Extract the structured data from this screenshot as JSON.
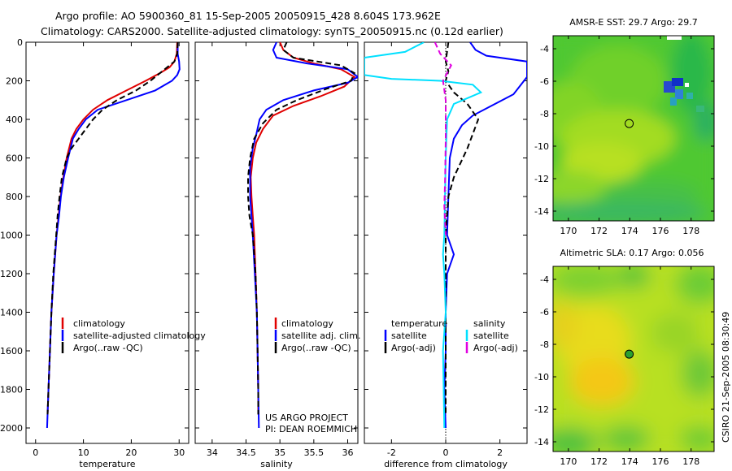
{
  "title_line1": "Argo profile: AO 5900360_81 15-Sep-2005 20050915_428 8.604S 173.962E",
  "title_line2": "Climatology: CARS2000. Satellite-adjusted climatology: synTS_20050915.nc (0.12d earlier)",
  "footer_right": "CSIRO 21-Sep-2005 08:30:49",
  "colors": {
    "red": "#e00000",
    "blue": "#0000ff",
    "black": "#000000",
    "cyan": "#00e0ff",
    "magenta": "#e000e0"
  },
  "chart_data": [
    {
      "id": "temperature",
      "type": "line",
      "xlabel": "temperature",
      "xlim": [
        -2,
        32
      ],
      "ylim": [
        2080,
        0
      ],
      "xticks": [
        0,
        10,
        20,
        30
      ],
      "yticks": [
        0,
        200,
        400,
        600,
        800,
        1000,
        1200,
        1400,
        1600,
        1800,
        2000
      ],
      "legend": {
        "position": "lower-right",
        "entries": [
          "climatology",
          "satellite-adjusted climatology",
          "Argo(..raw -QC)"
        ]
      },
      "series": [
        {
          "name": "climatology",
          "color": "red",
          "style": "solid",
          "points": [
            [
              29.6,
              0
            ],
            [
              29.5,
              60
            ],
            [
              29.0,
              100
            ],
            [
              28.0,
              130
            ],
            [
              26.0,
              160
            ],
            [
              23.0,
              200
            ],
            [
              19.0,
              250
            ],
            [
              15.0,
              300
            ],
            [
              12.0,
              350
            ],
            [
              10.0,
              400
            ],
            [
              8.5,
              450
            ],
            [
              7.5,
              500
            ],
            [
              6.5,
              600
            ],
            [
              5.8,
              700
            ],
            [
              5.2,
              800
            ],
            [
              4.8,
              900
            ],
            [
              4.4,
              1000
            ],
            [
              3.8,
              1200
            ],
            [
              3.3,
              1400
            ],
            [
              3.0,
              1600
            ],
            [
              2.7,
              1800
            ],
            [
              2.5,
              1930
            ]
          ]
        },
        {
          "name": "satellite-adjusted climatology",
          "color": "blue",
          "style": "solid",
          "points": [
            [
              29.7,
              0
            ],
            [
              29.7,
              60
            ],
            [
              30.0,
              100
            ],
            [
              30.1,
              140
            ],
            [
              29.6,
              170
            ],
            [
              28.5,
              200
            ],
            [
              25.0,
              250
            ],
            [
              19.0,
              300
            ],
            [
              13.0,
              350
            ],
            [
              10.5,
              400
            ],
            [
              9.0,
              450
            ],
            [
              7.8,
              500
            ],
            [
              6.8,
              600
            ],
            [
              5.9,
              700
            ],
            [
              5.3,
              800
            ],
            [
              4.9,
              900
            ],
            [
              4.4,
              1000
            ],
            [
              3.8,
              1200
            ],
            [
              3.3,
              1400
            ],
            [
              3.0,
              1600
            ],
            [
              2.7,
              1800
            ],
            [
              2.4,
              2000
            ]
          ]
        },
        {
          "name": "Argo(..raw -QC)",
          "color": "black",
          "style": "dashed",
          "points": [
            [
              29.7,
              0
            ],
            [
              29.6,
              60
            ],
            [
              29.0,
              100
            ],
            [
              27.5,
              130
            ],
            [
              26.0,
              160
            ],
            [
              24.0,
              200
            ],
            [
              21.0,
              250
            ],
            [
              17.0,
              300
            ],
            [
              14.0,
              350
            ],
            [
              12.0,
              400
            ],
            [
              10.5,
              450
            ],
            [
              9.0,
              500
            ],
            [
              7.5,
              550
            ],
            [
              6.5,
              600
            ],
            [
              5.5,
              700
            ],
            [
              5.0,
              800
            ],
            [
              4.6,
              900
            ],
            [
              4.3,
              1000
            ],
            [
              3.7,
              1200
            ],
            [
              3.3,
              1400
            ],
            [
              3.0,
              1600
            ],
            [
              2.7,
              1800
            ],
            [
              2.5,
              1930
            ]
          ]
        }
      ]
    },
    {
      "id": "salinity",
      "type": "line",
      "xlabel": "salinity",
      "xlim": [
        33.75,
        36.15
      ],
      "ylim": [
        2080,
        0
      ],
      "xticks": [
        34,
        34.5,
        35,
        35.5,
        36
      ],
      "xticklabels": [
        "34",
        "34.5",
        "35",
        "35.5",
        "36"
      ],
      "legend": {
        "position": "lower-right",
        "entries": [
          "climatology",
          "satellite adj. clim.",
          "Argo(..raw -QC)"
        ]
      },
      "annotation": [
        "US ARGO PROJECT",
        "PI: DEAN ROEMMICH"
      ],
      "series": [
        {
          "name": "climatology",
          "color": "red",
          "style": "solid",
          "points": [
            [
              35.0,
              0
            ],
            [
              35.05,
              40
            ],
            [
              35.2,
              80
            ],
            [
              35.5,
              110
            ],
            [
              35.9,
              140
            ],
            [
              36.1,
              180
            ],
            [
              35.95,
              230
            ],
            [
              35.6,
              280
            ],
            [
              35.2,
              330
            ],
            [
              34.9,
              380
            ],
            [
              34.75,
              450
            ],
            [
              34.65,
              520
            ],
            [
              34.6,
              600
            ],
            [
              34.57,
              700
            ],
            [
              34.58,
              800
            ],
            [
              34.6,
              900
            ],
            [
              34.62,
              1000
            ],
            [
              34.64,
              1200
            ],
            [
              34.66,
              1400
            ],
            [
              34.67,
              1600
            ],
            [
              34.68,
              1800
            ],
            [
              34.68,
              1930
            ]
          ]
        },
        {
          "name": "satellite adj. clim.",
          "color": "blue",
          "style": "solid",
          "points": [
            [
              34.95,
              0
            ],
            [
              34.9,
              40
            ],
            [
              34.95,
              80
            ],
            [
              35.4,
              110
            ],
            [
              36.0,
              140
            ],
            [
              36.15,
              180
            ],
            [
              36.0,
              210
            ],
            [
              35.5,
              250
            ],
            [
              35.05,
              300
            ],
            [
              34.8,
              350
            ],
            [
              34.7,
              400
            ],
            [
              34.65,
              480
            ],
            [
              34.6,
              550
            ],
            [
              34.56,
              650
            ],
            [
              34.56,
              800
            ],
            [
              34.58,
              900
            ],
            [
              34.6,
              1000
            ],
            [
              34.63,
              1200
            ],
            [
              34.66,
              1400
            ],
            [
              34.67,
              1600
            ],
            [
              34.68,
              1800
            ],
            [
              34.69,
              2000
            ]
          ]
        },
        {
          "name": "Argo(..raw -QC)",
          "color": "black",
          "style": "dashed",
          "points": [
            [
              35.1,
              0
            ],
            [
              35.05,
              40
            ],
            [
              35.2,
              80
            ],
            [
              35.9,
              120
            ],
            [
              36.1,
              160
            ],
            [
              36.05,
              200
            ],
            [
              35.7,
              240
            ],
            [
              35.25,
              300
            ],
            [
              34.95,
              350
            ],
            [
              34.75,
              420
            ],
            [
              34.62,
              500
            ],
            [
              34.56,
              600
            ],
            [
              34.53,
              700
            ],
            [
              34.53,
              800
            ],
            [
              34.55,
              900
            ],
            [
              34.6,
              1000
            ],
            [
              34.64,
              1200
            ],
            [
              34.66,
              1400
            ],
            [
              34.67,
              1600
            ],
            [
              34.68,
              1800
            ],
            [
              34.68,
              1930
            ]
          ]
        }
      ]
    },
    {
      "id": "difference",
      "type": "line",
      "xlabel": "difference from climatology",
      "xlim": [
        -3,
        3
      ],
      "ylim": [
        2080,
        0
      ],
      "xticks": [
        -2,
        0,
        2
      ],
      "legend_temperature": {
        "title": "temperature",
        "entries": [
          "satellite",
          "Argo(-adj)"
        ]
      },
      "legend_salinity": {
        "title": "salinity",
        "entries": [
          "satellite",
          "Argo(-adj)"
        ]
      },
      "series": [
        {
          "name": "temperature satellite",
          "color": "blue",
          "style": "solid",
          "points": [
            [
              0.9,
              0
            ],
            [
              1.1,
              40
            ],
            [
              1.5,
              70
            ],
            [
              3.0,
              100
            ],
            [
              3.0,
              180
            ],
            [
              2.5,
              270
            ],
            [
              1.0,
              380
            ],
            [
              0.6,
              430
            ],
            [
              0.3,
              500
            ],
            [
              0.15,
              600
            ],
            [
              0.1,
              800
            ],
            [
              0.05,
              1000
            ],
            [
              0.3,
              1100
            ],
            [
              0.05,
              1200
            ],
            [
              0.0,
              1400
            ],
            [
              0.0,
              1600
            ],
            [
              -0.05,
              1800
            ],
            [
              0.0,
              2000
            ]
          ]
        },
        {
          "name": "temperature Argo(-adj)",
          "color": "black",
          "style": "dashed",
          "points": [
            [
              0.1,
              0
            ],
            [
              0.0,
              100
            ],
            [
              0.1,
              150
            ],
            [
              0.0,
              200
            ],
            [
              0.3,
              260
            ],
            [
              0.8,
              320
            ],
            [
              1.2,
              400
            ],
            [
              0.8,
              550
            ],
            [
              0.3,
              700
            ],
            [
              0.1,
              800
            ],
            [
              0.0,
              1000
            ],
            [
              0.0,
              1200
            ],
            [
              0.0,
              1930
            ]
          ]
        },
        {
          "name": "salinity satellite",
          "color": "cyan",
          "style": "solid",
          "points": [
            [
              -0.8,
              0
            ],
            [
              -1.5,
              50
            ],
            [
              -3.0,
              80
            ],
            [
              -3.0,
              170
            ],
            [
              -2.0,
              190
            ],
            [
              -0.2,
              200
            ],
            [
              1.0,
              220
            ],
            [
              1.3,
              260
            ],
            [
              0.3,
              320
            ],
            [
              0.05,
              400
            ],
            [
              0.0,
              600
            ],
            [
              -0.05,
              1000
            ],
            [
              -0.1,
              1100
            ],
            [
              -0.05,
              1200
            ],
            [
              0.0,
              1400
            ],
            [
              -0.1,
              1600
            ],
            [
              -0.05,
              2000
            ]
          ]
        },
        {
          "name": "salinity Argo(-adj)",
          "color": "magenta",
          "style": "dashed",
          "points": [
            [
              -0.4,
              0
            ],
            [
              -0.2,
              60
            ],
            [
              0.2,
              120
            ],
            [
              -0.1,
              200
            ],
            [
              0.0,
              300
            ],
            [
              0.0,
              500
            ],
            [
              -0.02,
              700
            ],
            [
              -0.05,
              850
            ],
            [
              0.0,
              1000
            ]
          ]
        }
      ]
    },
    {
      "id": "sst_map",
      "type": "heatmap",
      "title": "AMSR-E SST: 29.7 Argo: 29.7",
      "xlim": [
        169,
        179.5
      ],
      "ylim": [
        -14.6,
        -3.2
      ],
      "xticks": [
        170,
        172,
        174,
        176,
        178
      ],
      "yticks": [
        -4,
        -6,
        -8,
        -10,
        -12,
        -14
      ],
      "float_position": [
        173.962,
        -8.604
      ]
    },
    {
      "id": "sla_map",
      "type": "heatmap",
      "title": "Altimetric SLA: 0.17 Argo: 0.056",
      "xlim": [
        169,
        179.5
      ],
      "ylim": [
        -14.6,
        -3.2
      ],
      "xticks": [
        170,
        172,
        174,
        176,
        178
      ],
      "yticks": [
        -4,
        -6,
        -8,
        -10,
        -12,
        -14
      ],
      "float_position": [
        173.962,
        -8.604
      ]
    }
  ]
}
